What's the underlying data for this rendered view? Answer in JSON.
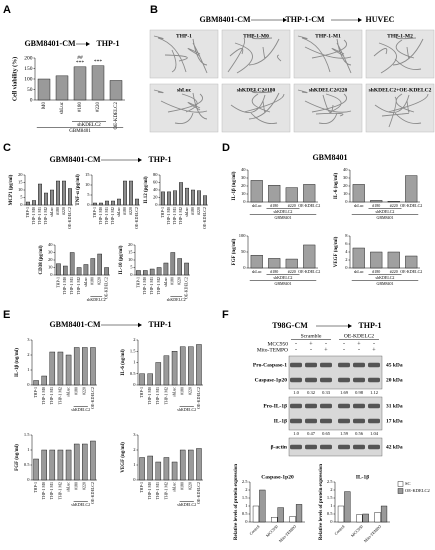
{
  "panel_letters": [
    "A",
    "B",
    "C",
    "D",
    "E",
    "F"
  ],
  "headers": {
    "A": [
      "GBM8401-CM",
      "THP-1"
    ],
    "B": [
      "GBM8401-CM",
      "THP-1-CM",
      "HUVEC"
    ],
    "C": [
      "GBM8401-CM",
      "THP-1"
    ],
    "D": [
      "GBM8401"
    ],
    "E": [
      "GBM8401-CM",
      "THP-1"
    ],
    "F": [
      "T98G-CM",
      "THP-1"
    ]
  },
  "image_labels": [
    "THP-1",
    "THP-1-M0",
    "THP-1-M1",
    "THP-1-M2",
    "shLuc",
    "shKDELC2#180",
    "shKDELC2#220",
    "shKDELC2+OE-KDELC2"
  ],
  "treatment_table": {
    "groups": [
      "Scramble",
      "OE-KDELC2"
    ],
    "rows": [
      {
        "label": "MCC950",
        "marks": [
          "-",
          "+",
          "-",
          "-",
          "+",
          "-"
        ]
      },
      {
        "label": "Mito-TEMPO",
        "marks": [
          "-",
          "-",
          "+",
          "-",
          "-",
          "+"
        ]
      }
    ]
  },
  "blots": [
    {
      "bands": [
        "Pro-Caspase-1",
        "Caspase-1p20"
      ],
      "sizes": [
        "45 kDa",
        "20 kDa"
      ],
      "ratios": [
        "1.0",
        "0.32",
        "0.33",
        "1.69",
        "0.98",
        "1.12"
      ]
    },
    {
      "bands": [
        "Pro-IL-1β",
        "IL-1β"
      ],
      "sizes": [
        "31 kDa",
        "17 kDa"
      ],
      "ratios": [
        "1.0",
        "0.47",
        "0.65",
        "1.59",
        "0.56",
        "1.04"
      ]
    },
    {
      "bands": [
        "β-actin"
      ],
      "sizes": [
        "42 kDa"
      ]
    }
  ],
  "chart_data": [
    {
      "type": "bar",
      "ylabel": "Cell viability (%)",
      "categories": [
        "M0",
        "shLuc",
        "#180",
        "#220",
        "OE-KDELC2"
      ],
      "values": [
        100,
        115,
        158,
        163,
        93
      ],
      "color": "#9a9a9a",
      "ylim": [
        0,
        200
      ],
      "yticks": [
        0,
        50,
        100,
        150,
        200
      ],
      "group_label": "shKDELC2",
      "group2_label": "GBM8401",
      "sig_top": [
        null,
        null,
        "##",
        null,
        null
      ],
      "sig": [
        null,
        null,
        "***",
        "***",
        null
      ]
    },
    {
      "type": "bar",
      "ylabel": "MCP1 (pg/ml)",
      "categories": [
        "THP-1",
        "THP-1 M0",
        "THP-1 M1",
        "THP-1 M2",
        "shLuc",
        "#180",
        "#220",
        "OE-KDELC2"
      ],
      "values": [
        2,
        3,
        14,
        8,
        10,
        16,
        16,
        11
      ],
      "color": "#8c8c8c",
      "ylim": [
        0,
        20
      ],
      "yticks": [
        0,
        5,
        10,
        15,
        20
      ]
    },
    {
      "type": "bar",
      "ylabel": "TNF-α (pg/ml)",
      "categories": [
        "THP-1",
        "THP-1 M0",
        "THP-1 M1",
        "THP-1 M2",
        "shLuc",
        "#180",
        "#220",
        "OE-KDELC2"
      ],
      "values": [
        1,
        1,
        2,
        2,
        3,
        12,
        12,
        3
      ],
      "color": "#8c8c8c",
      "ylim": [
        0,
        15
      ],
      "yticks": [
        0,
        5,
        10,
        15
      ]
    },
    {
      "type": "bar",
      "ylabel": "IL12 (pg/ml)",
      "categories": [
        "THP-1",
        "THP-1 M0",
        "THP-1 M1",
        "THP-1 M2",
        "shLuc",
        "#180",
        "#220",
        "OE-KDELC2"
      ],
      "values": [
        35,
        35,
        38,
        60,
        45,
        40,
        38,
        25
      ],
      "color": "#8c8c8c",
      "ylim": [
        0,
        80
      ],
      "yticks": [
        0,
        20,
        40,
        60,
        80
      ]
    },
    {
      "type": "bar",
      "ylabel": "CD38 (pg/ml)",
      "categories": [
        "THP-1",
        "THP-1 M0",
        "THP-1 M1",
        "THP-1 M2",
        "shLuc",
        "#180",
        "#220",
        "OE-KDELC2"
      ],
      "values": [
        15,
        12,
        30,
        10,
        14,
        22,
        28,
        10
      ],
      "color": "#8c8c8c",
      "ylim": [
        0,
        40
      ],
      "yticks": [
        0,
        10,
        20,
        30,
        40
      ],
      "group_label": "shKDELC2"
    },
    {
      "type": "bar",
      "ylabel": "IL-10 (pg/ml)",
      "categories": [
        "THP-1",
        "THP-1 M0",
        "THP-1 M1",
        "THP-1 M2",
        "shLuc",
        "#180",
        "#220",
        "OE-KDELC2"
      ],
      "values": [
        3,
        3,
        4,
        5,
        8,
        15,
        11,
        8
      ],
      "color": "#8c8c8c",
      "ylim": [
        0,
        20
      ],
      "yticks": [
        0,
        5,
        10,
        15,
        20
      ],
      "group_label": "shKDELC2"
    },
    {
      "type": "bar",
      "ylabel": "IL-1β (ng/ml)",
      "categories": [
        "shLuc",
        "#180",
        "#220",
        "OE-KDELC2"
      ],
      "values": [
        27,
        21,
        18,
        22
      ],
      "color": "#a0a0a0",
      "ylim": [
        0,
        40
      ],
      "yticks": [
        0,
        10,
        20,
        30,
        40
      ],
      "group_label": "shKDELC2",
      "group2_label": "GBM8401"
    },
    {
      "type": "bar",
      "ylabel": "IL-6 (ng/ml)",
      "categories": [
        "shLuc",
        "#180",
        "#220",
        "OE-KDELC2"
      ],
      "values": [
        22,
        2,
        1,
        33
      ],
      "color": "#a0a0a0",
      "ylim": [
        0,
        40
      ],
      "yticks": [
        0,
        10,
        20,
        30,
        40
      ],
      "group_label": "shKDELC2",
      "group2_label": "GBM8401"
    },
    {
      "type": "bar",
      "ylabel": "FGF (ng/ml)",
      "categories": [
        "shLuc",
        "#180",
        "#220",
        "OE-KDELC2"
      ],
      "values": [
        40,
        30,
        28,
        72
      ],
      "color": "#a0a0a0",
      "ylim": [
        0,
        100
      ],
      "yticks": [
        0,
        50,
        100
      ],
      "group_label": "shKDELC2",
      "group2_label": "GBM8401"
    },
    {
      "type": "bar",
      "ylabel": "VEGF (ng/ml)",
      "categories": [
        "shLuc",
        "#180",
        "#220",
        "OE-KDELC2"
      ],
      "values": [
        5,
        4,
        4,
        3
      ],
      "color": "#a0a0a0",
      "ylim": [
        0,
        8
      ],
      "yticks": [
        0,
        2,
        4,
        6,
        8
      ],
      "group_label": "shKDELC2",
      "group2_label": "GBM8401"
    },
    {
      "type": "bar",
      "ylabel": "IL-1β (ng/ml)",
      "categories": [
        "THP-1",
        "THP-1 M0",
        "THP-1 M1",
        "THP-1 M2",
        "shLuc",
        "#180",
        "#220",
        "OE-KDELC2"
      ],
      "values": [
        0.3,
        0.6,
        2.2,
        2.2,
        2.0,
        2.5,
        2.5,
        2.5
      ],
      "color": "#9a9a9a",
      "ylim": [
        0,
        3
      ],
      "yticks": [
        0,
        1,
        2,
        3
      ],
      "group_label": "shKDELC2"
    },
    {
      "type": "bar",
      "ylabel": "IL-6 (ng/ml)",
      "categories": [
        "THP-1",
        "THP-1 M0",
        "THP-1 M1",
        "THP-1 M2",
        "shLuc",
        "#180",
        "#220",
        "OE-KDELC2"
      ],
      "values": [
        0.5,
        0.5,
        1.0,
        1.3,
        1.5,
        1.7,
        1.7,
        1.8
      ],
      "color": "#9a9a9a",
      "ylim": [
        0,
        2
      ],
      "yticks": [
        0,
        0.5,
        1,
        1.5,
        2
      ],
      "group_label": "shKDELC2"
    },
    {
      "type": "bar",
      "ylabel": "FGF (ng/ml)",
      "categories": [
        "THP-1",
        "THP-1 M0",
        "THP-1 M1",
        "THP-1 M2",
        "shLuc",
        "#180",
        "#220",
        "OE-KDELC2"
      ],
      "values": [
        0.7,
        1.0,
        1.0,
        1.0,
        1.0,
        1.2,
        1.2,
        1.3
      ],
      "color": "#9a9a9a",
      "ylim": [
        0,
        1.5
      ],
      "yticks": [
        0,
        0.5,
        1,
        1.5
      ],
      "group_label": "shKDELC2"
    },
    {
      "type": "bar",
      "ylabel": "VEGF (ng/ml)",
      "categories": [
        "THP-1",
        "THP-1 M0",
        "THP-1 M1",
        "THP-1 M2",
        "shLuc",
        "#180",
        "#220",
        "OE-KDELC2"
      ],
      "values": [
        1.5,
        1.6,
        1.2,
        1.5,
        1.2,
        2.0,
        2.0,
        2.1
      ],
      "color": "#9a9a9a",
      "ylim": [
        0,
        3
      ],
      "yticks": [
        0,
        1,
        2,
        3
      ],
      "group_label": "shKDELC2"
    },
    {
      "type": "bar",
      "title": "Caspase-1p20",
      "ylabel": "Relative levels of protein expression",
      "categories": [
        "Control",
        "MCC950",
        "Mito-TEMPO"
      ],
      "series": [
        {
          "name": "SC",
          "color": "#ffffff",
          "values": [
            1.0,
            0.3,
            0.35
          ]
        },
        {
          "name": "OE-KDELC2",
          "color": "#9a9a9a",
          "values": [
            2.0,
            0.9,
            1.1
          ]
        }
      ],
      "ylim": [
        0,
        2.5
      ],
      "yticks": [
        0,
        0.5,
        1,
        1.5,
        2,
        2.5
      ]
    },
    {
      "type": "bar",
      "title": "IL-1β",
      "ylabel": "Relative levels of protein expression",
      "categories": [
        "Control",
        "MCC950",
        "Mito-TEMPO"
      ],
      "series": [
        {
          "name": "SC",
          "color": "#ffffff",
          "values": [
            1.0,
            0.45,
            0.6
          ]
        },
        {
          "name": "OE-KDELC2",
          "color": "#9a9a9a",
          "values": [
            1.9,
            0.5,
            1.0
          ]
        }
      ],
      "ylim": [
        0,
        2.5
      ],
      "yticks": [
        0,
        0.5,
        1,
        1.5,
        2,
        2.5
      ],
      "legend": "right"
    }
  ]
}
